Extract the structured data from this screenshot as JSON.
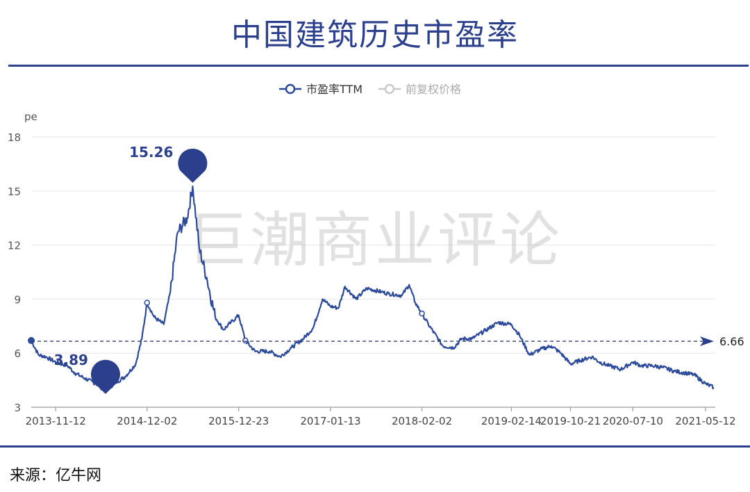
{
  "title": "中国建筑历史市盈率",
  "source": "来源：亿牛网",
  "watermark": "巨潮商业评论",
  "colors": {
    "primary": "#2b3f8c",
    "line": "#2c4a9a",
    "legend_inactive": "#c9c9c9"
  },
  "chart_data": {
    "type": "line",
    "title": "",
    "ylabel": "pe",
    "xlabel": "",
    "ylim": [
      3,
      18
    ],
    "yticks": [
      3,
      6,
      9,
      12,
      15,
      18
    ],
    "xticks": [
      "2013-11-12",
      "2014-12-02",
      "2015-12-23",
      "2017-01-13",
      "2018-02-02",
      "2019-02-14",
      "2019-10-21",
      "2020-07-10",
      "2021-05-12"
    ],
    "legend": [
      "市盈率TTM",
      "前复权价格"
    ],
    "legend_position": "top-center",
    "reference_line": {
      "value": 6.66,
      "label": "6.66"
    },
    "annotations": [
      {
        "label": "15.26",
        "x": "2015-06-12",
        "y": 15.26,
        "kind": "max"
      },
      {
        "label": "3.89",
        "x": "2014-06-10",
        "y": 3.89,
        "kind": "min"
      }
    ],
    "series": [
      {
        "name": "市盈率TTM",
        "x": [
          "2013-08-01",
          "2013-09-01",
          "2013-10-01",
          "2013-11-12",
          "2014-01-01",
          "2014-02-01",
          "2014-03-15",
          "2014-05-01",
          "2014-06-10",
          "2014-07-15",
          "2014-09-01",
          "2014-10-15",
          "2014-11-10",
          "2014-12-02",
          "2015-01-01",
          "2015-02-10",
          "2015-03-10",
          "2015-04-10",
          "2015-05-20",
          "2015-06-12",
          "2015-07-10",
          "2015-08-10",
          "2015-09-15",
          "2015-10-20",
          "2015-11-20",
          "2015-12-23",
          "2016-01-20",
          "2016-03-01",
          "2016-05-01",
          "2016-06-15",
          "2016-08-01",
          "2016-09-20",
          "2016-11-01",
          "2016-12-10",
          "2017-01-13",
          "2017-02-15",
          "2017-03-15",
          "2017-05-01",
          "2017-06-15",
          "2017-08-15",
          "2017-09-15",
          "2017-11-10",
          "2017-12-10",
          "2018-01-05",
          "2018-02-02",
          "2018-03-01",
          "2018-05-01",
          "2018-06-15",
          "2018-07-20",
          "2018-09-01",
          "2018-11-01",
          "2018-12-20",
          "2019-02-14",
          "2019-03-20",
          "2019-05-01",
          "2019-06-15",
          "2019-08-01",
          "2019-09-10",
          "2019-10-21",
          "2019-12-01",
          "2020-01-20",
          "2020-02-20",
          "2020-04-01",
          "2020-05-20",
          "2020-07-10",
          "2020-08-15",
          "2020-10-01",
          "2020-11-15",
          "2021-01-01",
          "2021-02-15",
          "2021-03-25",
          "2021-05-12",
          "2021-06-15"
        ],
        "y": [
          6.7,
          5.9,
          5.8,
          5.5,
          5.3,
          4.9,
          4.6,
          4.3,
          3.89,
          4.3,
          4.7,
          5.4,
          6.8,
          8.8,
          8.0,
          7.6,
          9.4,
          12.7,
          13.5,
          15.26,
          11.8,
          10.2,
          8.0,
          7.3,
          7.7,
          8.1,
          6.7,
          6.1,
          6.1,
          5.8,
          6.3,
          6.8,
          7.4,
          9.0,
          8.6,
          8.5,
          9.7,
          9.0,
          9.6,
          9.4,
          9.3,
          9.2,
          9.8,
          8.8,
          8.2,
          7.6,
          6.4,
          6.3,
          6.8,
          6.8,
          7.3,
          7.7,
          7.6,
          7.0,
          5.9,
          6.2,
          6.4,
          6.0,
          5.4,
          5.6,
          5.8,
          5.5,
          5.3,
          5.1,
          5.5,
          5.3,
          5.3,
          5.2,
          5.0,
          4.9,
          4.8,
          4.3,
          4.1
        ]
      },
      {
        "name": "前复权价格",
        "x": [],
        "y": []
      }
    ]
  }
}
